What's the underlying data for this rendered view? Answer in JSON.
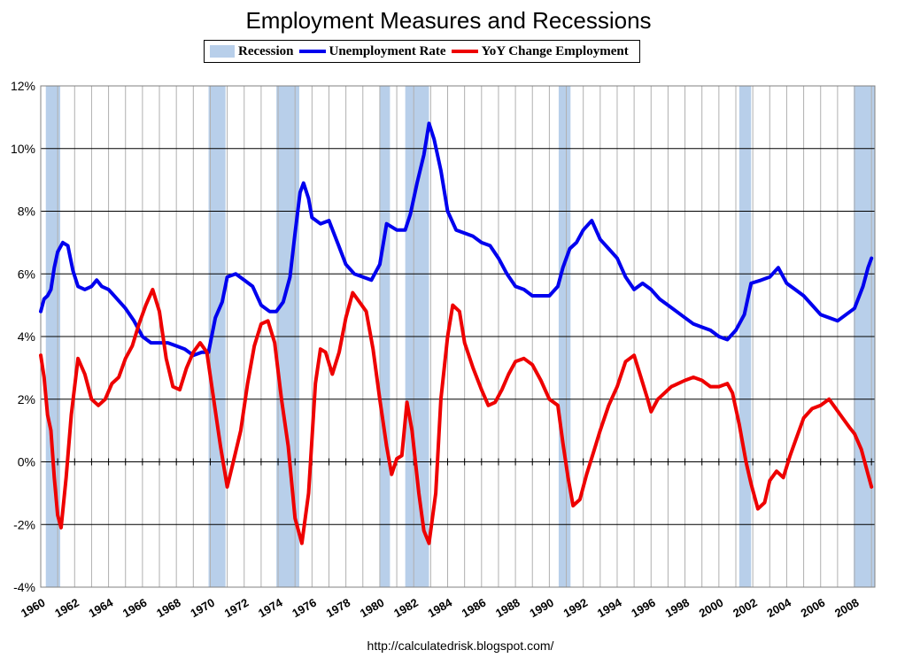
{
  "chart_data": {
    "type": "line",
    "title": "Employment Measures and Recessions",
    "source": "http://calculatedrisk.blogspot.com/",
    "x_range": [
      1960,
      2009.2
    ],
    "ylim": [
      -4,
      12
    ],
    "y_ticks": [
      "12%",
      "10%",
      "8%",
      "6%",
      "4%",
      "2%",
      "0%",
      "-2%",
      "-4%"
    ],
    "y_tick_values": [
      12,
      10,
      8,
      6,
      4,
      2,
      0,
      -2,
      -4
    ],
    "x_ticks": [
      "1960",
      "1962",
      "1964",
      "1966",
      "1968",
      "1970",
      "1972",
      "1974",
      "1976",
      "1978",
      "1980",
      "1982",
      "1984",
      "1986",
      "1988",
      "1990",
      "1992",
      "1994",
      "1996",
      "1998",
      "2000",
      "2002",
      "2004",
      "2006",
      "2008"
    ],
    "grid": "vertical lines each year, horizontal lines each 2%",
    "colors": {
      "recession": "#b8cfea",
      "unemployment": "#0000ee",
      "employment": "#ee0000"
    },
    "legend": {
      "recession": "Recession",
      "unemployment": "Unemployment Rate",
      "employment": "YoY Change Employment"
    },
    "recessions": [
      [
        1960.3,
        1961.15
      ],
      [
        1969.9,
        1970.9
      ],
      [
        1973.9,
        1975.25
      ],
      [
        1980.0,
        1980.6
      ],
      [
        1981.5,
        1982.9
      ],
      [
        1990.55,
        1991.25
      ],
      [
        2001.2,
        2001.9
      ],
      [
        2007.95,
        2009.2
      ]
    ],
    "series": [
      {
        "name": "Unemployment Rate",
        "color": "#0000ee",
        "points": [
          [
            1960.0,
            4.8
          ],
          [
            1960.2,
            5.2
          ],
          [
            1960.4,
            5.3
          ],
          [
            1960.6,
            5.5
          ],
          [
            1960.8,
            6.2
          ],
          [
            1961.0,
            6.7
          ],
          [
            1961.3,
            7.0
          ],
          [
            1961.6,
            6.9
          ],
          [
            1961.9,
            6.1
          ],
          [
            1962.2,
            5.6
          ],
          [
            1962.6,
            5.5
          ],
          [
            1963.0,
            5.6
          ],
          [
            1963.3,
            5.8
          ],
          [
            1963.6,
            5.6
          ],
          [
            1964.0,
            5.5
          ],
          [
            1964.5,
            5.2
          ],
          [
            1965.0,
            4.9
          ],
          [
            1965.5,
            4.5
          ],
          [
            1966.0,
            4.0
          ],
          [
            1966.5,
            3.8
          ],
          [
            1967.0,
            3.8
          ],
          [
            1967.5,
            3.8
          ],
          [
            1968.0,
            3.7
          ],
          [
            1968.5,
            3.6
          ],
          [
            1969.0,
            3.4
          ],
          [
            1969.5,
            3.5
          ],
          [
            1969.9,
            3.5
          ],
          [
            1970.3,
            4.6
          ],
          [
            1970.7,
            5.1
          ],
          [
            1971.0,
            5.9
          ],
          [
            1971.5,
            6.0
          ],
          [
            1972.0,
            5.8
          ],
          [
            1972.5,
            5.6
          ],
          [
            1973.0,
            5.0
          ],
          [
            1973.5,
            4.8
          ],
          [
            1973.9,
            4.8
          ],
          [
            1974.3,
            5.1
          ],
          [
            1974.7,
            5.9
          ],
          [
            1975.0,
            7.3
          ],
          [
            1975.3,
            8.6
          ],
          [
            1975.5,
            8.9
          ],
          [
            1975.8,
            8.4
          ],
          [
            1976.0,
            7.8
          ],
          [
            1976.5,
            7.6
          ],
          [
            1977.0,
            7.7
          ],
          [
            1977.5,
            7.0
          ],
          [
            1978.0,
            6.3
          ],
          [
            1978.5,
            6.0
          ],
          [
            1979.0,
            5.9
          ],
          [
            1979.5,
            5.8
          ],
          [
            1980.0,
            6.3
          ],
          [
            1980.4,
            7.6
          ],
          [
            1980.7,
            7.5
          ],
          [
            1981.0,
            7.4
          ],
          [
            1981.5,
            7.4
          ],
          [
            1981.8,
            7.9
          ],
          [
            1982.2,
            8.9
          ],
          [
            1982.6,
            9.8
          ],
          [
            1982.9,
            10.8
          ],
          [
            1983.2,
            10.3
          ],
          [
            1983.6,
            9.3
          ],
          [
            1984.0,
            8.0
          ],
          [
            1984.5,
            7.4
          ],
          [
            1985.0,
            7.3
          ],
          [
            1985.5,
            7.2
          ],
          [
            1986.0,
            7.0
          ],
          [
            1986.5,
            6.9
          ],
          [
            1987.0,
            6.5
          ],
          [
            1987.5,
            6.0
          ],
          [
            1988.0,
            5.6
          ],
          [
            1988.5,
            5.5
          ],
          [
            1989.0,
            5.3
          ],
          [
            1989.5,
            5.3
          ],
          [
            1990.0,
            5.3
          ],
          [
            1990.5,
            5.6
          ],
          [
            1990.8,
            6.2
          ],
          [
            1991.2,
            6.8
          ],
          [
            1991.6,
            7.0
          ],
          [
            1992.0,
            7.4
          ],
          [
            1992.5,
            7.7
          ],
          [
            1993.0,
            7.1
          ],
          [
            1993.5,
            6.8
          ],
          [
            1994.0,
            6.5
          ],
          [
            1994.5,
            5.9
          ],
          [
            1995.0,
            5.5
          ],
          [
            1995.5,
            5.7
          ],
          [
            1996.0,
            5.5
          ],
          [
            1996.5,
            5.2
          ],
          [
            1997.0,
            5.0
          ],
          [
            1997.5,
            4.8
          ],
          [
            1998.0,
            4.6
          ],
          [
            1998.5,
            4.4
          ],
          [
            1999.0,
            4.3
          ],
          [
            1999.5,
            4.2
          ],
          [
            2000.0,
            4.0
          ],
          [
            2000.5,
            3.9
          ],
          [
            2001.0,
            4.2
          ],
          [
            2001.5,
            4.7
          ],
          [
            2001.9,
            5.7
          ],
          [
            2002.5,
            5.8
          ],
          [
            2003.0,
            5.9
          ],
          [
            2003.5,
            6.2
          ],
          [
            2004.0,
            5.7
          ],
          [
            2004.5,
            5.5
          ],
          [
            2005.0,
            5.3
          ],
          [
            2005.5,
            5.0
          ],
          [
            2006.0,
            4.7
          ],
          [
            2006.5,
            4.6
          ],
          [
            2007.0,
            4.5
          ],
          [
            2007.5,
            4.7
          ],
          [
            2008.0,
            4.9
          ],
          [
            2008.5,
            5.6
          ],
          [
            2008.8,
            6.2
          ],
          [
            2009.0,
            6.5
          ]
        ]
      },
      {
        "name": "YoY Change Employment",
        "color": "#ee0000",
        "points": [
          [
            1960.0,
            3.4
          ],
          [
            1960.2,
            2.7
          ],
          [
            1960.4,
            1.5
          ],
          [
            1960.6,
            1.0
          ],
          [
            1960.8,
            -0.5
          ],
          [
            1961.0,
            -1.7
          ],
          [
            1961.2,
            -2.1
          ],
          [
            1961.5,
            -0.5
          ],
          [
            1961.8,
            1.5
          ],
          [
            1962.2,
            3.3
          ],
          [
            1962.6,
            2.8
          ],
          [
            1963.0,
            2.0
          ],
          [
            1963.4,
            1.8
          ],
          [
            1963.8,
            2.0
          ],
          [
            1964.2,
            2.5
          ],
          [
            1964.6,
            2.7
          ],
          [
            1965.0,
            3.3
          ],
          [
            1965.4,
            3.7
          ],
          [
            1965.8,
            4.4
          ],
          [
            1966.2,
            5.0
          ],
          [
            1966.6,
            5.5
          ],
          [
            1967.0,
            4.8
          ],
          [
            1967.4,
            3.3
          ],
          [
            1967.8,
            2.4
          ],
          [
            1968.2,
            2.3
          ],
          [
            1968.6,
            3.0
          ],
          [
            1969.0,
            3.5
          ],
          [
            1969.4,
            3.8
          ],
          [
            1969.8,
            3.5
          ],
          [
            1970.2,
            2.0
          ],
          [
            1970.6,
            0.5
          ],
          [
            1971.0,
            -0.8
          ],
          [
            1971.4,
            0.1
          ],
          [
            1971.8,
            1.0
          ],
          [
            1972.2,
            2.5
          ],
          [
            1972.6,
            3.7
          ],
          [
            1973.0,
            4.4
          ],
          [
            1973.4,
            4.5
          ],
          [
            1973.8,
            3.8
          ],
          [
            1974.2,
            2.0
          ],
          [
            1974.6,
            0.5
          ],
          [
            1975.0,
            -1.8
          ],
          [
            1975.4,
            -2.6
          ],
          [
            1975.8,
            -1.0
          ],
          [
            1976.2,
            2.5
          ],
          [
            1976.5,
            3.6
          ],
          [
            1976.8,
            3.5
          ],
          [
            1977.2,
            2.8
          ],
          [
            1977.6,
            3.5
          ],
          [
            1978.0,
            4.6
          ],
          [
            1978.4,
            5.4
          ],
          [
            1978.8,
            5.1
          ],
          [
            1979.2,
            4.8
          ],
          [
            1979.6,
            3.6
          ],
          [
            1980.0,
            2.0
          ],
          [
            1980.4,
            0.5
          ],
          [
            1980.7,
            -0.4
          ],
          [
            1981.0,
            0.1
          ],
          [
            1981.3,
            0.2
          ],
          [
            1981.6,
            1.9
          ],
          [
            1981.9,
            1.0
          ],
          [
            1982.3,
            -1.0
          ],
          [
            1982.6,
            -2.2
          ],
          [
            1982.9,
            -2.6
          ],
          [
            1983.3,
            -1.0
          ],
          [
            1983.6,
            2.0
          ],
          [
            1984.0,
            4.0
          ],
          [
            1984.3,
            5.0
          ],
          [
            1984.7,
            4.8
          ],
          [
            1985.0,
            3.8
          ],
          [
            1985.5,
            3.0
          ],
          [
            1986.0,
            2.3
          ],
          [
            1986.4,
            1.8
          ],
          [
            1986.8,
            1.9
          ],
          [
            1987.2,
            2.3
          ],
          [
            1987.6,
            2.8
          ],
          [
            1988.0,
            3.2
          ],
          [
            1988.5,
            3.3
          ],
          [
            1989.0,
            3.1
          ],
          [
            1989.5,
            2.6
          ],
          [
            1990.0,
            2.0
          ],
          [
            1990.5,
            1.8
          ],
          [
            1990.8,
            0.6
          ],
          [
            1991.1,
            -0.5
          ],
          [
            1991.4,
            -1.4
          ],
          [
            1991.8,
            -1.2
          ],
          [
            1992.2,
            -0.4
          ],
          [
            1992.6,
            0.3
          ],
          [
            1993.0,
            1.0
          ],
          [
            1993.5,
            1.8
          ],
          [
            1994.0,
            2.4
          ],
          [
            1994.5,
            3.2
          ],
          [
            1995.0,
            3.4
          ],
          [
            1995.4,
            2.7
          ],
          [
            1995.8,
            2.0
          ],
          [
            1996.0,
            1.6
          ],
          [
            1996.4,
            2.0
          ],
          [
            1996.8,
            2.2
          ],
          [
            1997.2,
            2.4
          ],
          [
            1997.6,
            2.5
          ],
          [
            1998.0,
            2.6
          ],
          [
            1998.5,
            2.7
          ],
          [
            1999.0,
            2.6
          ],
          [
            1999.5,
            2.4
          ],
          [
            2000.0,
            2.4
          ],
          [
            2000.5,
            2.5
          ],
          [
            2000.8,
            2.2
          ],
          [
            2001.2,
            1.2
          ],
          [
            2001.6,
            0.0
          ],
          [
            2001.9,
            -0.7
          ],
          [
            2002.3,
            -1.5
          ],
          [
            2002.7,
            -1.3
          ],
          [
            2003.0,
            -0.6
          ],
          [
            2003.4,
            -0.3
          ],
          [
            2003.8,
            -0.5
          ],
          [
            2004.2,
            0.2
          ],
          [
            2004.6,
            0.8
          ],
          [
            2005.0,
            1.4
          ],
          [
            2005.5,
            1.7
          ],
          [
            2006.0,
            1.8
          ],
          [
            2006.5,
            2.0
          ],
          [
            2006.9,
            1.7
          ],
          [
            2007.3,
            1.4
          ],
          [
            2007.7,
            1.1
          ],
          [
            2008.0,
            0.9
          ],
          [
            2008.4,
            0.4
          ],
          [
            2008.8,
            -0.4
          ],
          [
            2009.0,
            -0.8
          ]
        ]
      }
    ]
  }
}
